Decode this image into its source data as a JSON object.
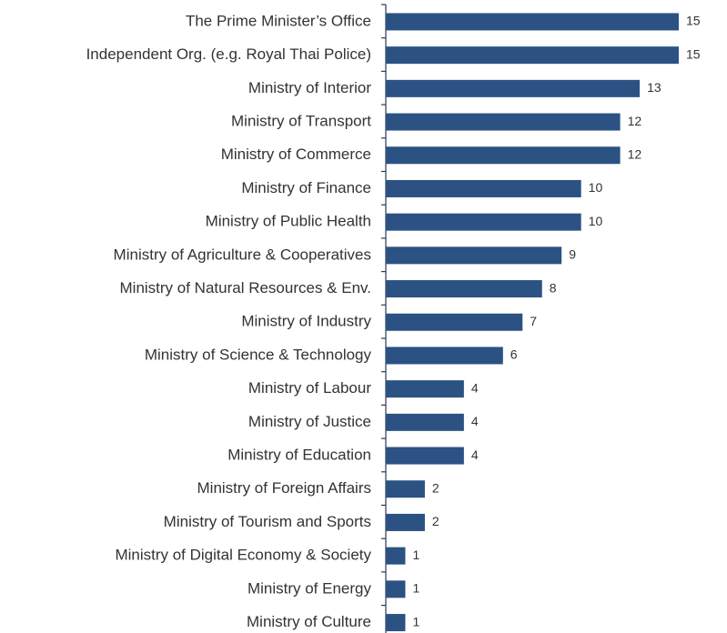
{
  "chart_data": {
    "type": "bar",
    "orientation": "horizontal",
    "categories": [
      "The Prime Minister’s Office",
      "Independent Org. (e.g. Royal Thai Police)",
      "Ministry of Interior",
      "Ministry of Transport",
      "Ministry of Commerce",
      "Ministry of Finance",
      "Ministry of Public Health",
      "Ministry of Agriculture & Cooperatives",
      "Ministry of Natural Resources & Env.",
      "Ministry of Industry",
      "Ministry of Science & Technology",
      "Ministry of Labour",
      "Ministry of Justice",
      "Ministry of Education",
      "Ministry of Foreign Affairs",
      "Ministry of Tourism and Sports",
      "Ministry of Digital Economy & Society",
      "Ministry of Energy",
      "Ministry of Culture"
    ],
    "values": [
      15,
      15,
      13,
      12,
      12,
      10,
      10,
      9,
      8,
      7,
      6,
      4,
      4,
      4,
      2,
      2,
      1,
      1,
      1
    ],
    "color": "#2b5283",
    "xlim": [
      0,
      15
    ]
  }
}
